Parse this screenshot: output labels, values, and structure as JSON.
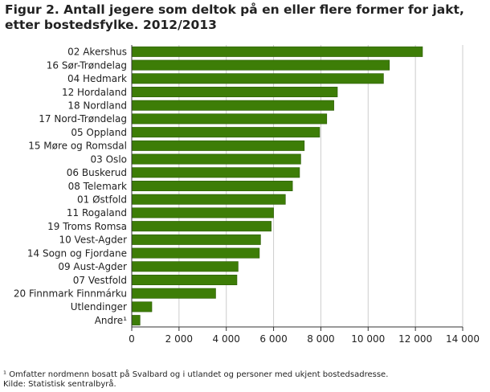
{
  "title": "Figur 2. Antall jegere som deltok på en eller flere former for jakt, etter bostedsfylke. 2012/2013",
  "footnote": "¹ Omfatter nordmenn bosatt på Svalbard og i utlandet og personer med ukjent bostedsadresse.",
  "source": "Kilde: Statistisk sentralbyrå.",
  "colors": {
    "bar": "#3d7d07",
    "bar_edge": "#2a5a03",
    "grid": "#cccccc",
    "axis": "#333333"
  },
  "chart_data": {
    "type": "bar",
    "orientation": "horizontal",
    "title": "Figur 2. Antall jegere som deltok på en eller flere former for jakt, etter bostedsfylke. 2012/2013",
    "categories": [
      "02 Akershus",
      "16 Sør-Trøndelag",
      "04 Hedmark",
      "12 Hordaland",
      "18 Nordland",
      "17 Nord-Trøndelag",
      "05 Oppland",
      "15 Møre og Romsdal",
      "03 Oslo",
      "06 Buskerud",
      "08 Telemark",
      "01 Østfold",
      "11 Rogaland",
      "19 Troms Romsa",
      "10 Vest-Agder",
      "14 Sogn og Fjordane",
      "09 Aust-Agder",
      "07 Vestfold",
      "20 Finnmark Finnmárku",
      "Utlendinger",
      "Andre¹"
    ],
    "values": [
      12300,
      10900,
      10650,
      8700,
      8550,
      8250,
      7950,
      7300,
      7150,
      7100,
      6800,
      6500,
      6000,
      5900,
      5450,
      5400,
      4500,
      4450,
      3550,
      850,
      350
    ],
    "xlim": [
      0,
      14000
    ],
    "xticks": [
      0,
      2000,
      4000,
      6000,
      8000,
      10000,
      12000,
      14000
    ],
    "xtick_labels": [
      "0",
      "2 000",
      "4 000",
      "6 000",
      "8 000",
      "10 000",
      "12 000",
      "14 000"
    ],
    "xlabel": "",
    "ylabel": "",
    "grid": true
  }
}
